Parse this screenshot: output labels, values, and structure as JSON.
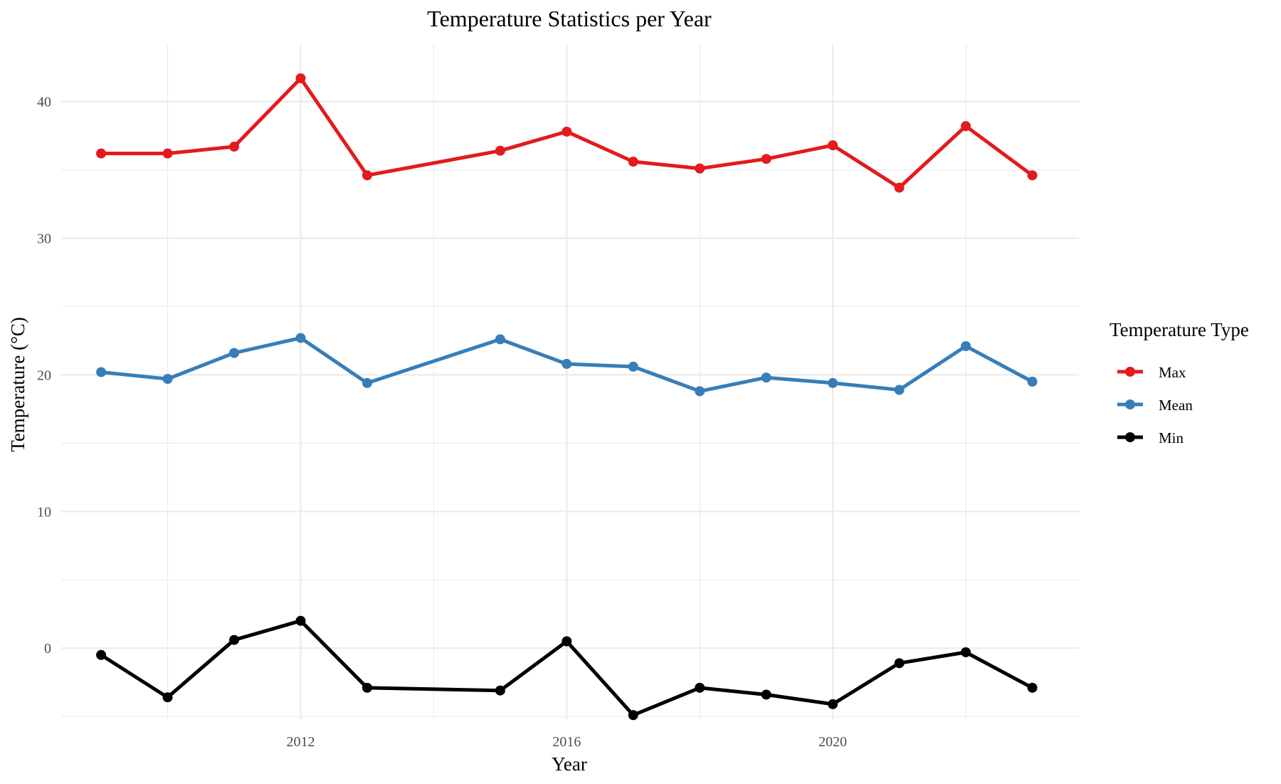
{
  "chart_data": {
    "type": "line",
    "title": "Temperature Statistics per Year",
    "xlabel": "Year",
    "ylabel": "Temperature (°C)",
    "x": [
      2009,
      2010,
      2011,
      2012,
      2013,
      2015,
      2016,
      2017,
      2018,
      2019,
      2020,
      2021,
      2022,
      2023
    ],
    "xlim": [
      2008.4,
      2023.7
    ],
    "ylim": [
      -5.2,
      44.2
    ],
    "x_ticks": [
      2012,
      2016,
      2020
    ],
    "x_tick_labels": [
      "2012",
      "2016",
      "2020"
    ],
    "y_ticks": [
      0,
      10,
      20,
      30,
      40
    ],
    "y_tick_labels": [
      "0",
      "10",
      "20",
      "30",
      "40"
    ],
    "grid": true,
    "legend": {
      "title": "Temperature Type",
      "position": "right"
    },
    "series": [
      {
        "name": "Max",
        "color": "#e41a1c",
        "values": [
          36.2,
          36.2,
          36.7,
          41.7,
          34.6,
          36.4,
          37.8,
          35.6,
          35.1,
          35.8,
          36.8,
          33.7,
          38.2,
          34.6
        ]
      },
      {
        "name": "Mean",
        "color": "#377eb8",
        "values": [
          20.2,
          19.7,
          21.6,
          22.7,
          19.4,
          22.6,
          20.8,
          20.6,
          18.8,
          19.8,
          19.4,
          18.9,
          22.1,
          19.5
        ]
      },
      {
        "name": "Min",
        "color": "#000000",
        "values": [
          -0.5,
          -3.6,
          0.6,
          2.0,
          -2.9,
          -3.1,
          0.5,
          -4.9,
          -2.9,
          -3.4,
          -4.1,
          -1.1,
          -0.3,
          -2.9
        ]
      }
    ]
  }
}
